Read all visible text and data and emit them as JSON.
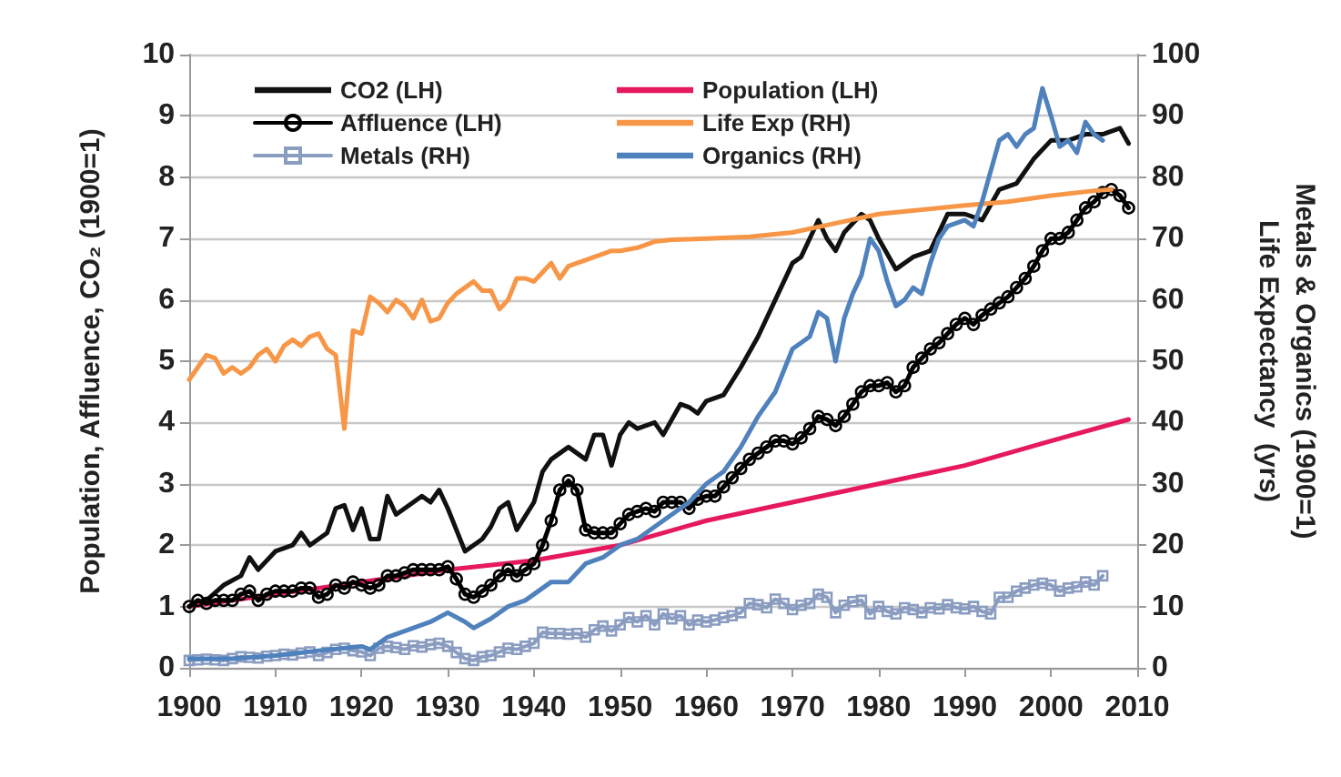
{
  "chart_data": {
    "type": "line",
    "ylabel": "Population, Affluence, CO₂ (1900=1)",
    "y2label": "Metals & Organics (1900=1)\nLife Expectancy  (yrs)",
    "xlim": [
      1900,
      2010
    ],
    "xticks": [
      1900,
      1910,
      1920,
      1930,
      1940,
      1950,
      1960,
      1970,
      1980,
      1990,
      2000,
      2010
    ],
    "ylim": [
      0,
      10
    ],
    "yticks": [
      0,
      1,
      2,
      3,
      4,
      5,
      6,
      7,
      8,
      9,
      10
    ],
    "y2lim": [
      0,
      100
    ],
    "y2ticks": [
      0,
      10,
      20,
      30,
      40,
      50,
      60,
      70,
      80,
      90,
      100
    ],
    "grid": "y",
    "legend": "top left",
    "marker": "none",
    "line_style": "solid",
    "series": [
      {
        "name": "CO2 (LH)",
        "color": "#111111",
        "x": [
          1900,
          1902,
          1904,
          1906,
          1907,
          1908,
          1910,
          1912,
          1913,
          1914,
          1916,
          1917,
          1918,
          1919,
          1920,
          1921,
          1922,
          1923,
          1924,
          1926,
          1927,
          1928,
          1929,
          1930,
          1932,
          1934,
          1935,
          1936,
          1937,
          1938,
          1940,
          1941,
          1942,
          1944,
          1946,
          1947,
          1948,
          1949,
          1950,
          1951,
          1952,
          1954,
          1955,
          1957,
          1958,
          1959,
          1960,
          1962,
          1964,
          1966,
          1968,
          1970,
          1971,
          1972,
          1973,
          1974,
          1975,
          1976,
          1978,
          1979,
          1980,
          1982,
          1984,
          1986,
          1988,
          1990,
          1992,
          1994,
          1996,
          1998,
          2000,
          2002,
          2004,
          2006,
          2008,
          2009
        ],
        "values": [
          1.0,
          1.1,
          1.35,
          1.5,
          1.8,
          1.6,
          1.9,
          2.0,
          2.2,
          2.0,
          2.2,
          2.6,
          2.65,
          2.25,
          2.6,
          2.1,
          2.1,
          2.8,
          2.5,
          2.7,
          2.8,
          2.7,
          2.9,
          2.6,
          1.9,
          2.1,
          2.3,
          2.6,
          2.7,
          2.25,
          2.7,
          3.2,
          3.4,
          3.6,
          3.4,
          3.8,
          3.8,
          3.3,
          3.8,
          4.0,
          3.9,
          4.0,
          3.8,
          4.3,
          4.25,
          4.15,
          4.35,
          4.45,
          4.9,
          5.4,
          6.0,
          6.6,
          6.7,
          7.0,
          7.3,
          7.0,
          6.8,
          7.1,
          7.4,
          7.3,
          7.0,
          6.5,
          6.7,
          6.8,
          7.4,
          7.4,
          7.3,
          7.8,
          7.9,
          8.3,
          8.6,
          8.6,
          8.7,
          8.7,
          8.8,
          8.55
        ]
      },
      {
        "name": "Population (LH)",
        "color": "#e6195f",
        "x": [
          1900,
          1910,
          1920,
          1930,
          1940,
          1950,
          1960,
          1970,
          1980,
          1990,
          2000,
          2009
        ],
        "values": [
          1.0,
          1.2,
          1.4,
          1.6,
          1.75,
          2.0,
          2.4,
          2.7,
          3.0,
          3.3,
          3.7,
          4.05
        ]
      },
      {
        "name": "Affluence (LH)",
        "color": "#000000",
        "marker": "circle",
        "x": [
          1900,
          1901,
          1902,
          1903,
          1904,
          1905,
          1906,
          1907,
          1908,
          1909,
          1910,
          1911,
          1912,
          1913,
          1914,
          1915,
          1916,
          1917,
          1918,
          1919,
          1920,
          1921,
          1922,
          1923,
          1924,
          1925,
          1926,
          1927,
          1928,
          1929,
          1930,
          1931,
          1932,
          1933,
          1934,
          1935,
          1936,
          1937,
          1938,
          1939,
          1940,
          1941,
          1942,
          1943,
          1944,
          1945,
          1946,
          1947,
          1948,
          1949,
          1950,
          1951,
          1952,
          1953,
          1954,
          1955,
          1956,
          1957,
          1958,
          1959,
          1960,
          1961,
          1962,
          1963,
          1964,
          1965,
          1966,
          1967,
          1968,
          1969,
          1970,
          1971,
          1972,
          1973,
          1974,
          1975,
          1976,
          1977,
          1978,
          1979,
          1980,
          1981,
          1982,
          1983,
          1984,
          1985,
          1986,
          1987,
          1988,
          1989,
          1990,
          1991,
          1992,
          1993,
          1994,
          1995,
          1996,
          1997,
          1998,
          1999,
          2000,
          2001,
          2002,
          2003,
          2004,
          2005,
          2006,
          2007,
          2008,
          2009
        ],
        "values": [
          1.0,
          1.1,
          1.05,
          1.1,
          1.1,
          1.1,
          1.2,
          1.25,
          1.1,
          1.2,
          1.25,
          1.25,
          1.25,
          1.3,
          1.3,
          1.15,
          1.2,
          1.35,
          1.3,
          1.4,
          1.35,
          1.3,
          1.35,
          1.5,
          1.5,
          1.55,
          1.6,
          1.6,
          1.6,
          1.6,
          1.65,
          1.45,
          1.2,
          1.15,
          1.25,
          1.35,
          1.5,
          1.6,
          1.5,
          1.6,
          1.7,
          2.0,
          2.4,
          2.9,
          3.05,
          2.9,
          2.25,
          2.2,
          2.2,
          2.2,
          2.35,
          2.5,
          2.55,
          2.6,
          2.55,
          2.7,
          2.7,
          2.7,
          2.6,
          2.75,
          2.8,
          2.8,
          2.95,
          3.1,
          3.25,
          3.4,
          3.5,
          3.6,
          3.7,
          3.7,
          3.65,
          3.75,
          3.9,
          4.1,
          4.05,
          3.95,
          4.1,
          4.3,
          4.5,
          4.6,
          4.6,
          4.65,
          4.5,
          4.6,
          4.9,
          5.05,
          5.2,
          5.3,
          5.45,
          5.6,
          5.7,
          5.6,
          5.75,
          5.85,
          5.95,
          6.05,
          6.2,
          6.35,
          6.55,
          6.8,
          7.0,
          7.0,
          7.1,
          7.3,
          7.5,
          7.6,
          7.75,
          7.8,
          7.7,
          7.5
        ]
      },
      {
        "name": "Life Exp (RH)",
        "color": "#f79646",
        "axis": "y2",
        "x": [
          1900,
          1901,
          1902,
          1903,
          1904,
          1905,
          1906,
          1907,
          1908,
          1909,
          1910,
          1911,
          1912,
          1913,
          1914,
          1915,
          1916,
          1917,
          1918,
          1919,
          1920,
          1921,
          1922,
          1923,
          1924,
          1925,
          1926,
          1927,
          1928,
          1929,
          1930,
          1931,
          1932,
          1933,
          1934,
          1935,
          1936,
          1937,
          1938,
          1939,
          1940,
          1941,
          1942,
          1943,
          1944,
          1945,
          1946,
          1947,
          1948,
          1949,
          1950,
          1952,
          1954,
          1956,
          1960,
          1965,
          1970,
          1975,
          1980,
          1985,
          1990,
          1995,
          2000,
          2005,
          2007
        ],
        "values": [
          47,
          49,
          51,
          50.5,
          48,
          49,
          48,
          49,
          51,
          52,
          50,
          52.5,
          53.5,
          52.5,
          54,
          54.5,
          52,
          51,
          39,
          55,
          54.5,
          60.5,
          59.5,
          58,
          60,
          59,
          57,
          60,
          56.5,
          57,
          59.5,
          61,
          62,
          63,
          61.5,
          61.5,
          58.5,
          60,
          63.5,
          63.5,
          63,
          64.5,
          66,
          63.5,
          65.5,
          66,
          66.5,
          67,
          67.5,
          68,
          68,
          68.5,
          69.5,
          69.8,
          70,
          70.3,
          71,
          72.5,
          74,
          74.7,
          75.4,
          76,
          77,
          77.8,
          78
        ]
      },
      {
        "name": "Metals (RH)",
        "color": "#8a9cc0",
        "marker": "square",
        "axis": "y2",
        "x": [
          1900,
          1901,
          1902,
          1903,
          1904,
          1905,
          1906,
          1907,
          1908,
          1909,
          1910,
          1911,
          1912,
          1913,
          1914,
          1915,
          1916,
          1917,
          1918,
          1919,
          1920,
          1921,
          1922,
          1923,
          1924,
          1925,
          1926,
          1927,
          1928,
          1929,
          1930,
          1931,
          1932,
          1933,
          1934,
          1935,
          1936,
          1937,
          1938,
          1939,
          1940,
          1941,
          1942,
          1943,
          1944,
          1945,
          1946,
          1947,
          1948,
          1949,
          1950,
          1951,
          1952,
          1953,
          1954,
          1955,
          1956,
          1957,
          1958,
          1959,
          1960,
          1961,
          1962,
          1963,
          1964,
          1965,
          1966,
          1967,
          1968,
          1969,
          1970,
          1971,
          1972,
          1973,
          1974,
          1975,
          1976,
          1977,
          1978,
          1979,
          1980,
          1981,
          1982,
          1983,
          1984,
          1985,
          1986,
          1987,
          1988,
          1989,
          1990,
          1991,
          1992,
          1993,
          1994,
          1995,
          1996,
          1997,
          1998,
          1999,
          2000,
          2001,
          2002,
          2003,
          2004,
          2005,
          2006
        ],
        "values": [
          1.2,
          1.3,
          1.4,
          1.3,
          1.2,
          1.5,
          1.8,
          1.7,
          1.6,
          1.9,
          2.0,
          2.2,
          2.1,
          2.4,
          2.6,
          2.0,
          2.5,
          3.0,
          3.2,
          2.8,
          2.6,
          2.0,
          3.2,
          3.5,
          3.3,
          3.0,
          3.6,
          3.4,
          3.8,
          4.0,
          3.5,
          2.5,
          1.5,
          1.2,
          1.8,
          2.0,
          2.6,
          3.2,
          3.0,
          3.5,
          4.0,
          5.8,
          5.6,
          5.6,
          5.5,
          5.6,
          5.0,
          6.2,
          6.8,
          6.0,
          7.0,
          8.2,
          7.5,
          8.5,
          7.0,
          8.8,
          8.0,
          8.5,
          7.0,
          7.8,
          7.5,
          7.8,
          8.2,
          8.5,
          9.0,
          10.5,
          10.3,
          9.8,
          11.2,
          10.5,
          9.5,
          10.2,
          10.5,
          12.0,
          11.5,
          9.0,
          10.2,
          10.8,
          11.0,
          8.8,
          10.0,
          9.2,
          8.8,
          9.8,
          9.5,
          9.0,
          9.8,
          9.6,
          10.3,
          9.8,
          9.6,
          10.0,
          9.2,
          8.8,
          11.5,
          11.5,
          12.5,
          13.0,
          13.5,
          13.8,
          13.5,
          12.5,
          13.0,
          13.2,
          14.0,
          13.5,
          15.0
        ]
      },
      {
        "name": "Organics (RH)",
        "color": "#4f81bd",
        "axis": "y2",
        "x": [
          1900,
          1905,
          1910,
          1915,
          1920,
          1921,
          1923,
          1925,
          1928,
          1930,
          1932,
          1933,
          1935,
          1937,
          1939,
          1940,
          1942,
          1944,
          1946,
          1948,
          1950,
          1952,
          1955,
          1957,
          1958,
          1960,
          1962,
          1964,
          1966,
          1968,
          1970,
          1972,
          1973,
          1974,
          1975,
          1976,
          1977,
          1978,
          1979,
          1980,
          1981,
          1982,
          1983,
          1984,
          1985,
          1986,
          1987,
          1988,
          1990,
          1991,
          1992,
          1994,
          1995,
          1996,
          1997,
          1998,
          1999,
          2000,
          2001,
          2002,
          2003,
          2004,
          2005,
          2006
        ],
        "values": [
          1.5,
          1.5,
          2,
          2.8,
          3.5,
          3,
          5,
          6,
          7.5,
          9,
          7.5,
          6.5,
          8,
          10,
          11,
          12,
          14,
          14,
          17,
          18,
          20,
          21,
          24,
          26,
          27,
          30,
          32,
          36,
          41,
          45,
          52,
          54,
          58,
          57,
          50,
          57,
          61,
          64,
          70,
          68,
          63,
          59,
          60,
          62,
          61,
          66,
          70,
          72,
          73,
          72,
          76,
          86,
          87,
          85,
          87,
          88,
          94.5,
          90,
          85,
          86,
          84,
          89,
          87,
          86
        ]
      }
    ]
  }
}
